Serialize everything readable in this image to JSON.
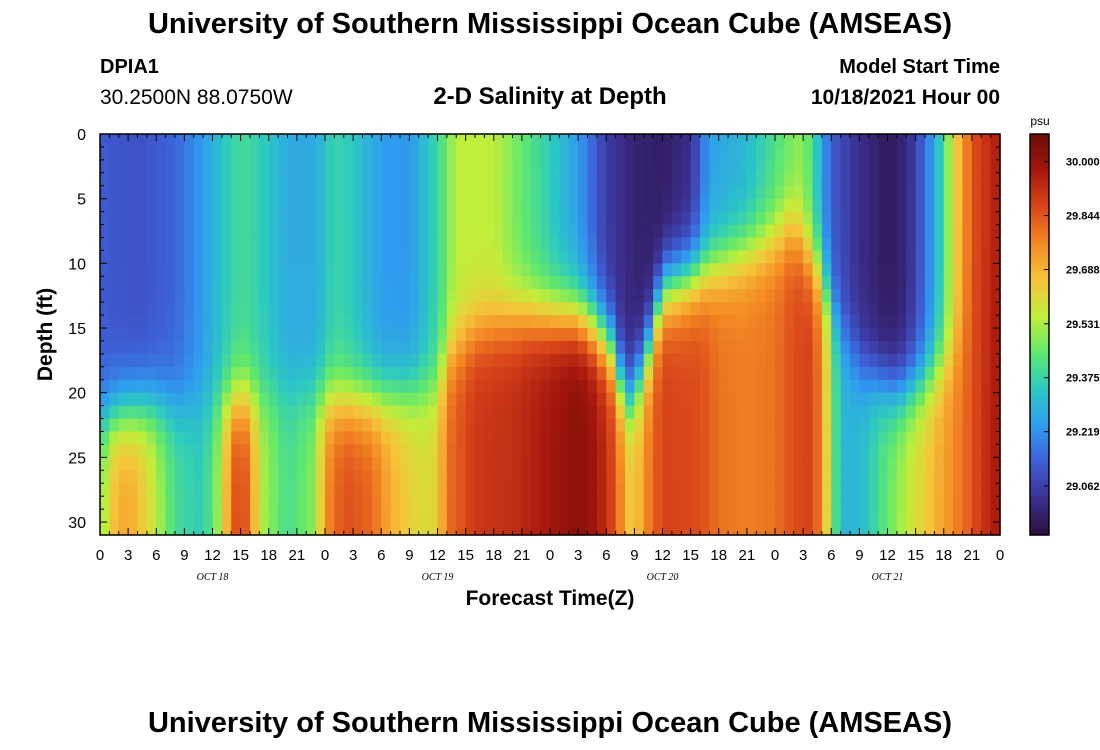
{
  "header": {
    "title": "University of Southern Mississippi Ocean Cube (AMSEAS)",
    "station": "DPIA1",
    "coords": "30.2500N  88.0750W",
    "subtitle": "2-D Salinity at Depth",
    "start_label": "Model Start Time",
    "start_value": "10/18/2021 Hour 00",
    "footer_title": "University of Southern Mississippi Ocean Cube (AMSEAS)"
  },
  "colors": {
    "ramp": [
      "#2a0f3c",
      "#3b2f8f",
      "#3e5fd6",
      "#2f9cef",
      "#2cc9c2",
      "#5fe86e",
      "#c2ee3a",
      "#f5c43a",
      "#f48a24",
      "#d9461a",
      "#a6170d",
      "#6a0a06"
    ]
  },
  "chart_data": {
    "type": "heatmap",
    "title": "2-D Salinity at Depth",
    "xlabel": "Forecast Time(Z)",
    "ylabel": "Depth (ft)",
    "x_hours_range": [
      0,
      96
    ],
    "ylim": [
      0,
      31
    ],
    "x_tick_labels": [
      "0",
      "3",
      "6",
      "9",
      "12",
      "15",
      "18",
      "21",
      "0",
      "3",
      "6",
      "9",
      "12",
      "15",
      "18",
      "21",
      "0",
      "3",
      "6",
      "9",
      "12",
      "15",
      "18",
      "21",
      "0",
      "3",
      "6",
      "9",
      "12",
      "15",
      "18",
      "21",
      "0"
    ],
    "day_labels": [
      {
        "label": "OCT 18",
        "hour": 12
      },
      {
        "label": "OCT 19",
        "hour": 36
      },
      {
        "label": "OCT 20",
        "hour": 60
      },
      {
        "label": "OCT 21",
        "hour": 84
      }
    ],
    "y_ticks": [
      0,
      5,
      10,
      15,
      20,
      25,
      30
    ],
    "colorbar": {
      "unit": "psu",
      "min": 28.92,
      "max": 30.08,
      "ticks": [
        "30.000",
        "29.844",
        "29.688",
        "29.531",
        "29.375",
        "29.219",
        "29.062"
      ],
      "tick_values": [
        30.0,
        29.844,
        29.688,
        29.531,
        29.375,
        29.219,
        29.062
      ]
    },
    "surface_profile_psu": [
      [
        0,
        29.12
      ],
      [
        4,
        29.1
      ],
      [
        8,
        29.14
      ],
      [
        11,
        29.24
      ],
      [
        13,
        29.33
      ],
      [
        15,
        29.4
      ],
      [
        17,
        29.36
      ],
      [
        20,
        29.27
      ],
      [
        23,
        29.27
      ],
      [
        25,
        29.38
      ],
      [
        27,
        29.34
      ],
      [
        30,
        29.24
      ],
      [
        33,
        29.23
      ],
      [
        36,
        29.38
      ],
      [
        38,
        29.55
      ],
      [
        42,
        29.55
      ],
      [
        45,
        29.45
      ],
      [
        48,
        29.35
      ],
      [
        51,
        29.24
      ],
      [
        54,
        29.05
      ],
      [
        57,
        28.99
      ],
      [
        60,
        28.97
      ],
      [
        63,
        29.02
      ],
      [
        65,
        29.25
      ],
      [
        69,
        29.3
      ],
      [
        73,
        29.45
      ],
      [
        75,
        29.5
      ],
      [
        76,
        29.4
      ],
      [
        78,
        29.12
      ],
      [
        81,
        29.02
      ],
      [
        84,
        28.96
      ],
      [
        86,
        29.0
      ],
      [
        88,
        29.15
      ],
      [
        90,
        29.4
      ],
      [
        91,
        29.6
      ],
      [
        93,
        29.85
      ],
      [
        96,
        29.97
      ]
    ],
    "bottom_profile_psu": [
      [
        0,
        29.45
      ],
      [
        1,
        29.65
      ],
      [
        3,
        29.72
      ],
      [
        5,
        29.62
      ],
      [
        8,
        29.4
      ],
      [
        11,
        29.35
      ],
      [
        13,
        29.55
      ],
      [
        14,
        29.82
      ],
      [
        15,
        29.88
      ],
      [
        16,
        29.8
      ],
      [
        17,
        29.55
      ],
      [
        20,
        29.4
      ],
      [
        23,
        29.5
      ],
      [
        24,
        29.75
      ],
      [
        26,
        29.86
      ],
      [
        29,
        29.82
      ],
      [
        31,
        29.7
      ],
      [
        34,
        29.6
      ],
      [
        36,
        29.62
      ],
      [
        37,
        29.8
      ],
      [
        40,
        29.9
      ],
      [
        44,
        29.92
      ],
      [
        48,
        29.98
      ],
      [
        51,
        30.03
      ],
      [
        53,
        29.98
      ],
      [
        55,
        29.85
      ],
      [
        56,
        29.7
      ],
      [
        57,
        29.62
      ],
      [
        58,
        29.75
      ],
      [
        60,
        29.88
      ],
      [
        64,
        29.86
      ],
      [
        66,
        29.8
      ],
      [
        69,
        29.78
      ],
      [
        72,
        29.8
      ],
      [
        74,
        29.86
      ],
      [
        76,
        29.88
      ],
      [
        77,
        29.75
      ],
      [
        78,
        29.5
      ],
      [
        79,
        29.3
      ],
      [
        81,
        29.3
      ],
      [
        83,
        29.4
      ],
      [
        86,
        29.55
      ],
      [
        89,
        29.68
      ],
      [
        92,
        29.8
      ],
      [
        94,
        29.9
      ],
      [
        96,
        29.98
      ]
    ],
    "halocline_depth_ft": [
      [
        0,
        22
      ],
      [
        5,
        21
      ],
      [
        10,
        21
      ],
      [
        15,
        20.5
      ],
      [
        20,
        20
      ],
      [
        25,
        20.5
      ],
      [
        30,
        20.5
      ],
      [
        33,
        20
      ],
      [
        36,
        19.5
      ],
      [
        37,
        17
      ],
      [
        40,
        15
      ],
      [
        45,
        14
      ],
      [
        48,
        14
      ],
      [
        51,
        14
      ],
      [
        53,
        15
      ],
      [
        55,
        17
      ],
      [
        56,
        21
      ],
      [
        58,
        18
      ],
      [
        60,
        12
      ],
      [
        63,
        11
      ],
      [
        66,
        10
      ],
      [
        69,
        9
      ],
      [
        72,
        8
      ],
      [
        74,
        7
      ],
      [
        75,
        8.5
      ],
      [
        77,
        11
      ],
      [
        79,
        15
      ],
      [
        81,
        18
      ],
      [
        83,
        19
      ],
      [
        85,
        20
      ],
      [
        88,
        19
      ],
      [
        91,
        17
      ],
      [
        93,
        15
      ],
      [
        96,
        12
      ]
    ]
  }
}
